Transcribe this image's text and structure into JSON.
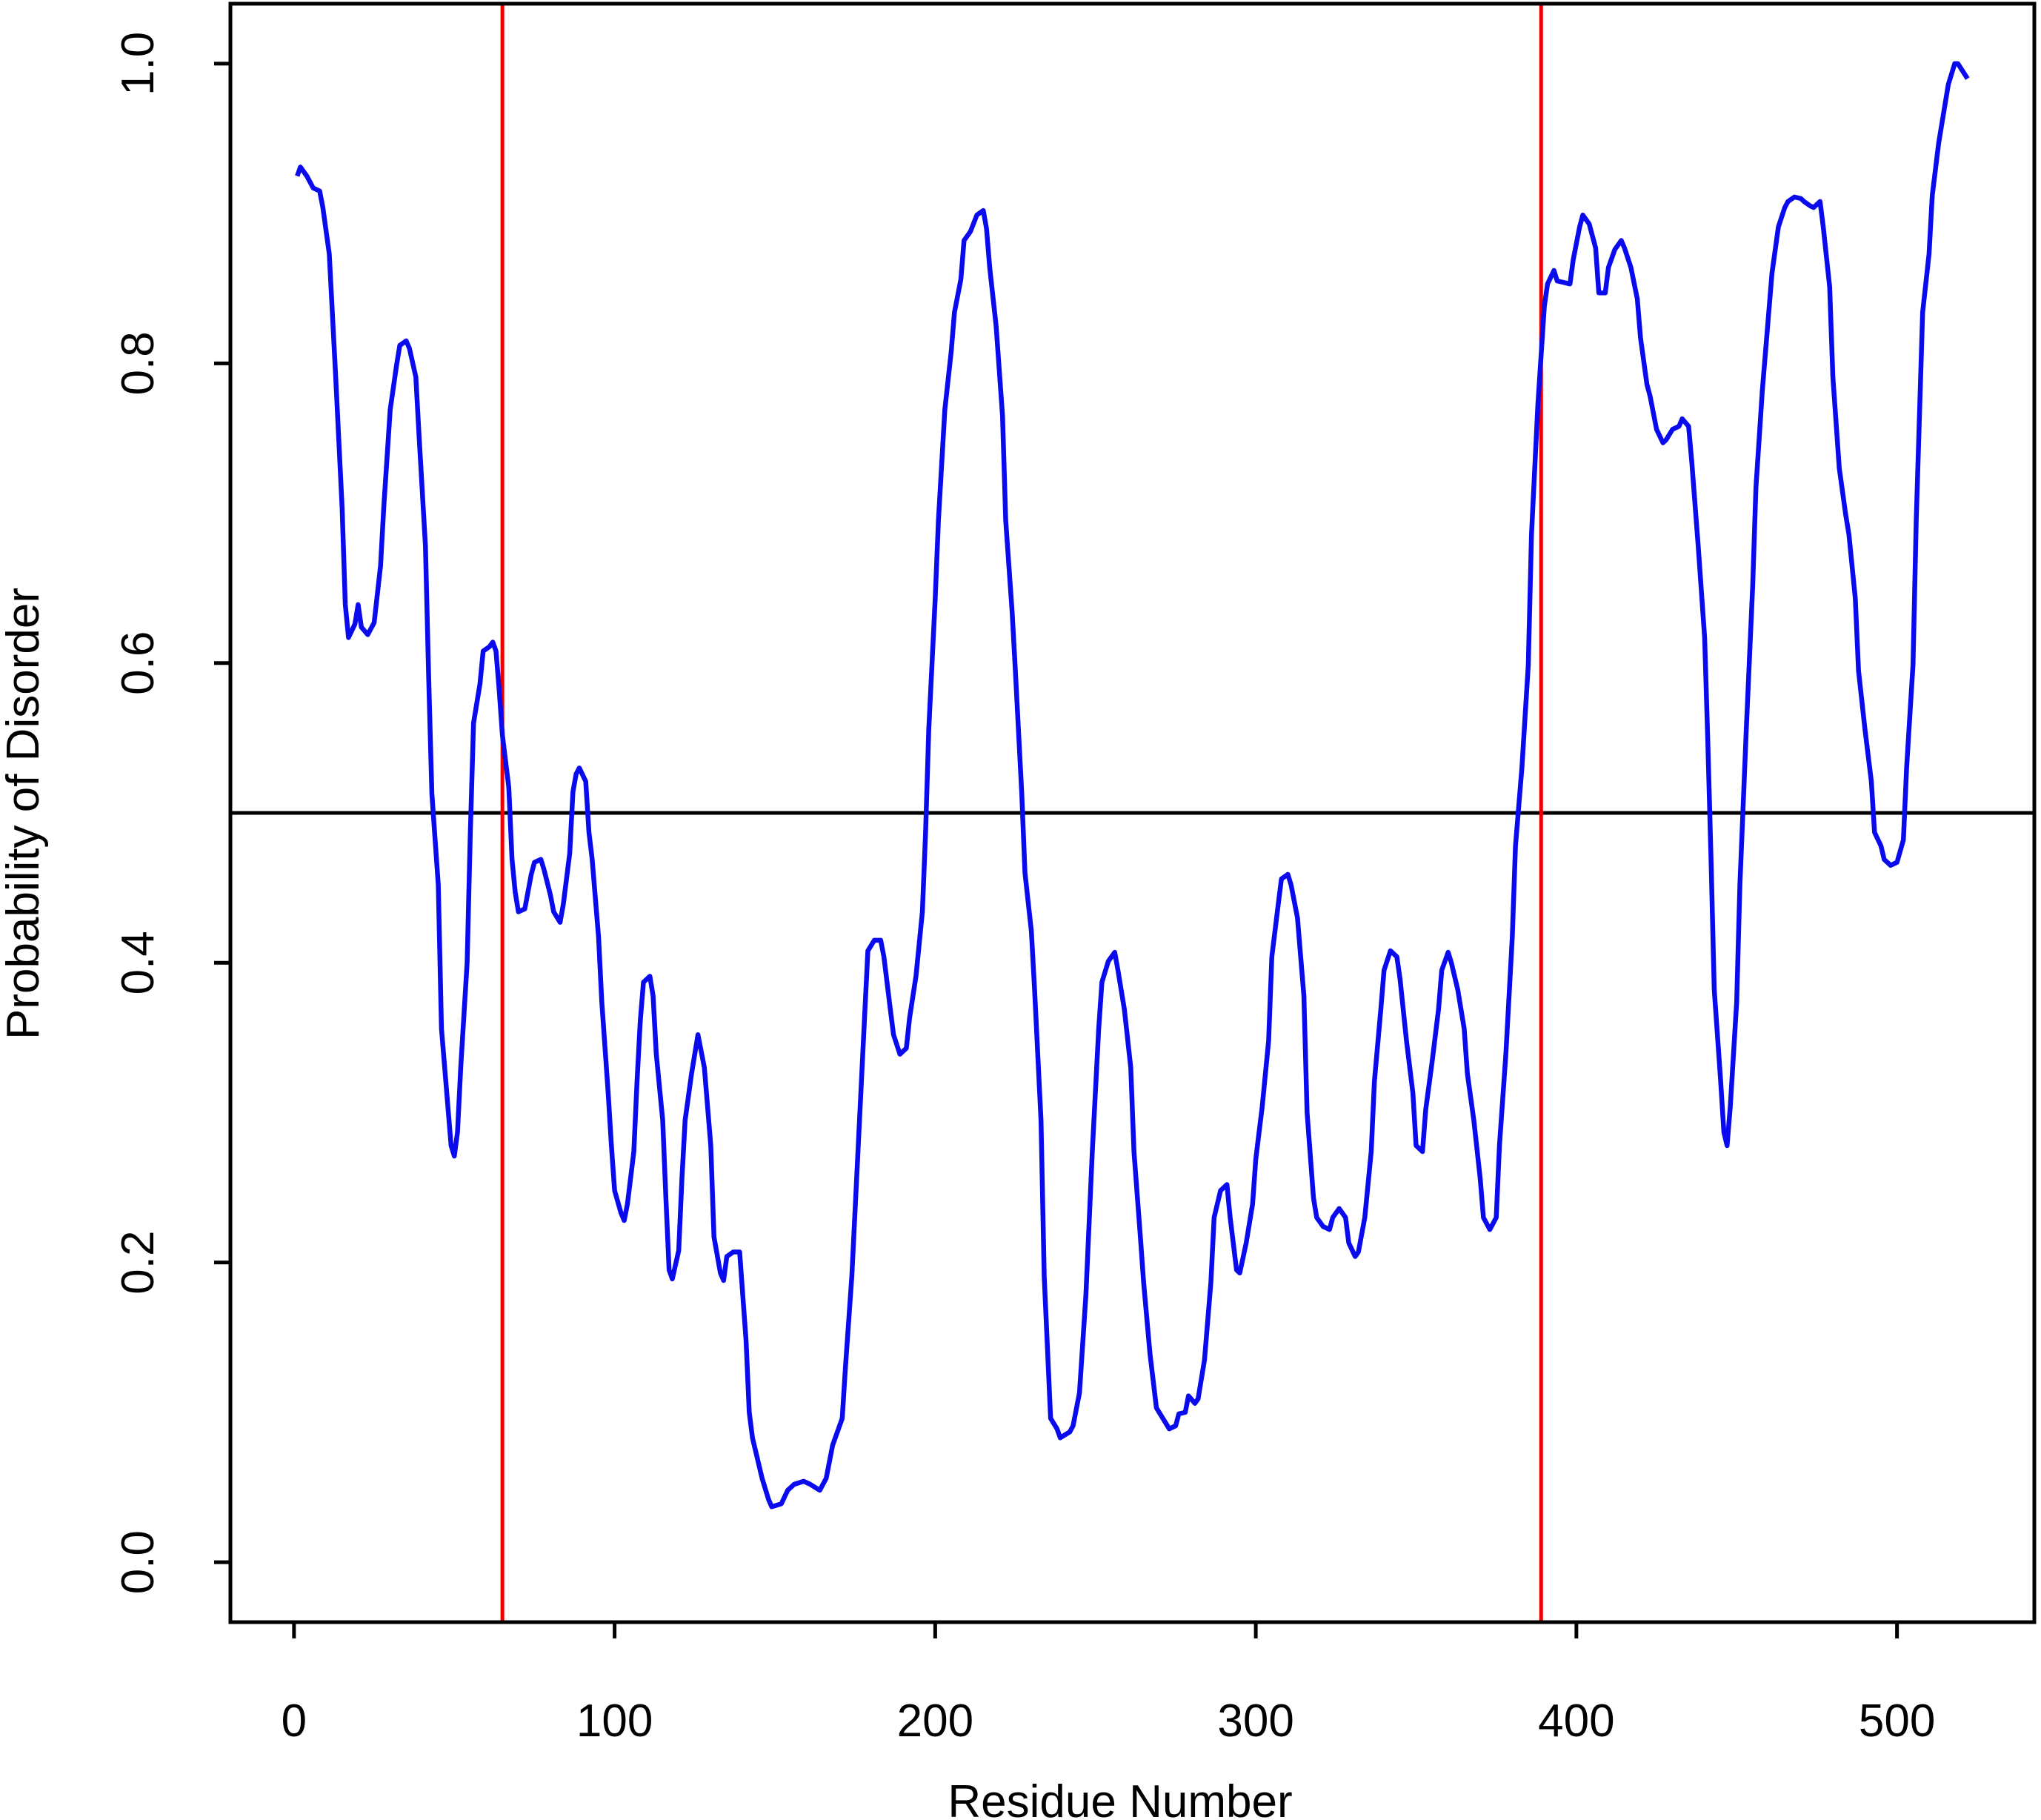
{
  "chart_data": {
    "type": "line",
    "xlabel": "Residue Number",
    "ylabel": "Probability of Disorder",
    "xlim": [
      -19.84,
      542.84
    ],
    "ylim": [
      -0.04,
      1.04
    ],
    "xticks": [
      0,
      100,
      200,
      300,
      400,
      500
    ],
    "yticks": [
      {
        "value": 0,
        "label": "0.0"
      },
      0.2,
      0.4,
      0.6,
      0.8,
      {
        "value": 1,
        "label": "1.0"
      }
    ],
    "hline": 0.5,
    "hline_color": "#000000",
    "vlines": [
      65,
      389
    ],
    "vline_color": "#ee0000",
    "series": [
      {
        "color": "#0a0aee",
        "x": [
          1,
          2,
          4,
          6,
          8,
          9,
          11,
          13,
          15,
          16,
          17,
          19,
          20,
          21,
          23,
          25,
          27,
          28,
          30,
          32,
          33,
          35,
          36,
          38,
          39,
          41,
          42,
          43,
          45,
          46,
          48,
          49,
          50,
          51,
          52,
          54,
          55,
          56,
          58,
          59,
          61,
          62,
          63,
          64,
          65,
          67,
          68,
          69,
          70,
          72,
          74,
          75,
          77,
          78,
          80,
          81,
          83,
          84,
          86,
          87,
          88,
          89,
          91,
          92,
          93,
          95,
          96,
          98,
          99,
          100,
          102,
          103,
          104,
          106,
          107,
          108,
          109,
          111,
          112,
          113,
          115,
          116,
          117,
          118,
          120,
          121,
          122,
          124,
          125,
          126,
          128,
          130,
          131,
          133,
          134,
          135,
          137,
          139,
          141,
          142,
          143,
          146,
          148,
          149,
          152,
          154,
          156,
          159,
          161,
          164,
          166,
          168,
          171,
          172,
          174,
          176,
          178,
          179,
          181,
          183,
          184,
          186,
          187,
          189,
          191,
          192,
          194,
          196,
          197,
          198,
          200,
          201,
          203,
          205,
          206,
          208,
          209,
          211,
          213,
          215,
          216,
          217,
          219,
          221,
          222,
          224,
          225,
          227,
          228,
          230,
          231,
          233,
          234,
          236,
          238,
          239,
          242,
          243,
          245,
          247,
          249,
          251,
          252,
          254,
          256,
          257,
          259,
          261,
          262,
          264,
          265,
          267,
          269,
          271,
          273,
          275,
          276,
          278,
          279,
          281,
          282,
          284,
          286,
          287,
          289,
          291,
          292,
          294,
          295,
          297,
          299,
          300,
          302,
          304,
          305,
          307,
          308,
          310,
          311,
          313,
          315,
          316,
          318,
          319,
          321,
          323,
          324,
          326,
          328,
          329,
          331,
          332,
          334,
          336,
          337,
          339,
          340,
          342,
          344,
          345,
          347,
          349,
          350,
          352,
          353,
          355,
          357,
          358,
          360,
          361,
          363,
          365,
          366,
          368,
          370,
          371,
          373,
          375,
          376,
          378,
          380,
          381,
          383,
          385,
          386,
          388,
          390,
          391,
          393,
          394,
          396,
          398,
          399,
          401,
          402,
          404,
          406,
          407,
          409,
          410,
          412,
          414,
          415,
          417,
          419,
          420,
          422,
          423,
          425,
          427,
          428,
          430,
          432,
          433,
          435,
          436,
          438,
          440,
          441,
          442,
          443,
          445,
          446,
          447,
          448,
          450,
          451,
          453,
          455,
          456,
          458,
          460,
          461,
          463,
          465,
          466,
          468,
          470,
          471,
          473,
          474,
          476,
          477,
          479,
          480,
          482,
          484,
          485,
          487,
          488,
          490,
          492,
          493,
          495,
          496,
          498,
          500,
          502,
          503,
          505,
          506,
          508,
          510,
          511,
          513,
          515,
          516,
          518,
          519,
          522
        ],
        "values": [
          0.925,
          0.931,
          0.925,
          0.917,
          0.915,
          0.904,
          0.873,
          0.791,
          0.704,
          0.639,
          0.617,
          0.626,
          0.639,
          0.624,
          0.619,
          0.627,
          0.665,
          0.704,
          0.769,
          0.799,
          0.812,
          0.815,
          0.81,
          0.791,
          0.752,
          0.678,
          0.591,
          0.513,
          0.452,
          0.356,
          0.304,
          0.278,
          0.271,
          0.287,
          0.33,
          0.4,
          0.487,
          0.56,
          0.586,
          0.608,
          0.611,
          0.614,
          0.608,
          0.582,
          0.552,
          0.517,
          0.469,
          0.447,
          0.434,
          0.436,
          0.459,
          0.467,
          0.469,
          0.462,
          0.445,
          0.434,
          0.427,
          0.439,
          0.473,
          0.514,
          0.526,
          0.53,
          0.521,
          0.487,
          0.469,
          0.417,
          0.374,
          0.313,
          0.278,
          0.248,
          0.233,
          0.228,
          0.239,
          0.274,
          0.321,
          0.361,
          0.387,
          0.391,
          0.378,
          0.339,
          0.295,
          0.243,
          0.195,
          0.189,
          0.208,
          0.256,
          0.295,
          0.326,
          0.339,
          0.352,
          0.33,
          0.278,
          0.217,
          0.193,
          0.188,
          0.204,
          0.207,
          0.207,
          0.148,
          0.1,
          0.083,
          0.056,
          0.042,
          0.037,
          0.039,
          0.048,
          0.052,
          0.054,
          0.052,
          0.048,
          0.056,
          0.078,
          0.096,
          0.13,
          0.191,
          0.278,
          0.365,
          0.408,
          0.415,
          0.415,
          0.404,
          0.369,
          0.352,
          0.339,
          0.343,
          0.363,
          0.391,
          0.434,
          0.487,
          0.556,
          0.643,
          0.695,
          0.769,
          0.808,
          0.834,
          0.856,
          0.882,
          0.888,
          0.899,
          0.902,
          0.89,
          0.864,
          0.825,
          0.765,
          0.695,
          0.634,
          0.595,
          0.513,
          0.46,
          0.421,
          0.382,
          0.295,
          0.191,
          0.096,
          0.089,
          0.083,
          0.087,
          0.091,
          0.113,
          0.178,
          0.274,
          0.356,
          0.387,
          0.401,
          0.407,
          0.395,
          0.369,
          0.33,
          0.274,
          0.217,
          0.187,
          0.139,
          0.103,
          0.096,
          0.089,
          0.091,
          0.099,
          0.1,
          0.111,
          0.106,
          0.109,
          0.135,
          0.187,
          0.23,
          0.248,
          0.252,
          0.23,
          0.195,
          0.193,
          0.213,
          0.239,
          0.269,
          0.304,
          0.348,
          0.404,
          0.439,
          0.456,
          0.459,
          0.452,
          0.43,
          0.378,
          0.3,
          0.243,
          0.23,
          0.224,
          0.222,
          0.23,
          0.236,
          0.23,
          0.213,
          0.204,
          0.207,
          0.23,
          0.274,
          0.321,
          0.369,
          0.395,
          0.408,
          0.404,
          0.389,
          0.348,
          0.313,
          0.278,
          0.274,
          0.302,
          0.334,
          0.369,
          0.395,
          0.407,
          0.4,
          0.382,
          0.356,
          0.326,
          0.295,
          0.256,
          0.23,
          0.222,
          0.23,
          0.278,
          0.339,
          0.417,
          0.478,
          0.53,
          0.599,
          0.686,
          0.773,
          0.838,
          0.853,
          0.862,
          0.855,
          0.854,
          0.853,
          0.869,
          0.891,
          0.899,
          0.893,
          0.877,
          0.847,
          0.847,
          0.864,
          0.876,
          0.882,
          0.877,
          0.864,
          0.843,
          0.817,
          0.786,
          0.778,
          0.756,
          0.747,
          0.749,
          0.756,
          0.758,
          0.763,
          0.758,
          0.734,
          0.678,
          0.617,
          0.547,
          0.469,
          0.382,
          0.321,
          0.287,
          0.278,
          0.304,
          0.374,
          0.452,
          0.556,
          0.652,
          0.717,
          0.782,
          0.834,
          0.86,
          0.891,
          0.904,
          0.908,
          0.911,
          0.91,
          0.908,
          0.905,
          0.904,
          0.908,
          0.891,
          0.851,
          0.791,
          0.73,
          0.699,
          0.686,
          0.643,
          0.595,
          0.556,
          0.521,
          0.487,
          0.478,
          0.469,
          0.465,
          0.467,
          0.482,
          0.53,
          0.599,
          0.695,
          0.834,
          0.873,
          0.912,
          0.947,
          0.973,
          0.986,
          1.0,
          1.0,
          0.99
        ]
      }
    ]
  }
}
